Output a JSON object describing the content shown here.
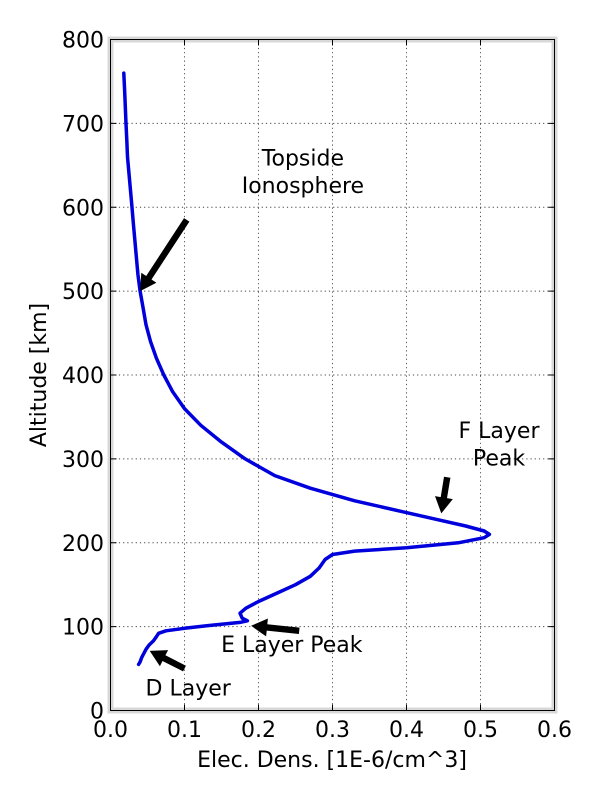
{
  "chart_data": {
    "type": "line",
    "title": "",
    "xlabel": "Elec. Dens. [1E-6/cm^3]",
    "ylabel": "Altitude [km]",
    "xlim": [
      0.0,
      0.6
    ],
    "ylim": [
      0,
      800
    ],
    "grid": true,
    "line_color": "#0000dd",
    "frame_color": "#d8d8d8",
    "xticks": [
      {
        "value": 0.0,
        "label": "0.0"
      },
      {
        "value": 0.1,
        "label": "0.1"
      },
      {
        "value": 0.2,
        "label": "0.2"
      },
      {
        "value": 0.3,
        "label": "0.3"
      },
      {
        "value": 0.4,
        "label": "0.4"
      },
      {
        "value": 0.5,
        "label": "0.5"
      },
      {
        "value": 0.6,
        "label": "0.6"
      }
    ],
    "yticks": [
      {
        "value": 0,
        "label": "0"
      },
      {
        "value": 100,
        "label": "100"
      },
      {
        "value": 200,
        "label": "200"
      },
      {
        "value": 300,
        "label": "300"
      },
      {
        "value": 400,
        "label": "400"
      },
      {
        "value": 500,
        "label": "500"
      },
      {
        "value": 600,
        "label": "600"
      },
      {
        "value": 700,
        "label": "700"
      },
      {
        "value": 800,
        "label": "800"
      }
    ],
    "series": [
      {
        "points": [
          [
            0.018,
            760
          ],
          [
            0.019,
            740
          ],
          [
            0.02,
            720
          ],
          [
            0.021,
            700
          ],
          [
            0.022,
            680
          ],
          [
            0.023,
            660
          ],
          [
            0.025,
            640
          ],
          [
            0.027,
            620
          ],
          [
            0.029,
            600
          ],
          [
            0.031,
            580
          ],
          [
            0.033,
            560
          ],
          [
            0.035,
            540
          ],
          [
            0.037,
            520
          ],
          [
            0.04,
            500
          ],
          [
            0.044,
            480
          ],
          [
            0.048,
            460
          ],
          [
            0.054,
            440
          ],
          [
            0.062,
            420
          ],
          [
            0.072,
            400
          ],
          [
            0.084,
            380
          ],
          [
            0.1,
            360
          ],
          [
            0.122,
            340
          ],
          [
            0.15,
            320
          ],
          [
            0.182,
            300
          ],
          [
            0.222,
            280
          ],
          [
            0.27,
            265
          ],
          [
            0.33,
            250
          ],
          [
            0.39,
            238
          ],
          [
            0.44,
            228
          ],
          [
            0.48,
            220
          ],
          [
            0.505,
            214
          ],
          [
            0.512,
            210
          ],
          [
            0.505,
            206
          ],
          [
            0.47,
            200
          ],
          [
            0.4,
            194
          ],
          [
            0.33,
            190
          ],
          [
            0.3,
            186
          ],
          [
            0.29,
            180
          ],
          [
            0.282,
            170
          ],
          [
            0.27,
            160
          ],
          [
            0.25,
            150
          ],
          [
            0.225,
            140
          ],
          [
            0.2,
            130
          ],
          [
            0.183,
            122
          ],
          [
            0.175,
            116
          ],
          [
            0.178,
            110
          ],
          [
            0.185,
            107
          ],
          [
            0.175,
            105
          ],
          [
            0.13,
            101
          ],
          [
            0.1,
            98
          ],
          [
            0.075,
            95
          ],
          [
            0.065,
            92
          ],
          [
            0.062,
            88
          ],
          [
            0.058,
            83
          ],
          [
            0.052,
            78
          ],
          [
            0.048,
            73
          ],
          [
            0.045,
            68
          ],
          [
            0.042,
            63
          ],
          [
            0.04,
            58
          ],
          [
            0.038,
            55
          ]
        ]
      }
    ],
    "annotations": [
      {
        "id": "topside",
        "lines": [
          "Topside",
          "Ionosphere"
        ],
        "text_x": 0.26,
        "text_y": [
          650,
          617
        ],
        "arrow_from": [
          0.103,
          585
        ],
        "arrow_to": [
          0.04,
          500
        ]
      },
      {
        "id": "f-layer",
        "lines": [
          "F Layer",
          "Peak"
        ],
        "text_x": 0.525,
        "text_y": [
          325,
          292
        ],
        "arrow_from": [
          0.455,
          278
        ],
        "arrow_to": [
          0.447,
          235
        ]
      },
      {
        "id": "e-layer",
        "lines": [
          "E Layer Peak"
        ],
        "text_x": 0.245,
        "text_y": [
          70
        ],
        "arrow_from": [
          0.255,
          95
        ],
        "arrow_to": [
          0.19,
          101
        ]
      },
      {
        "id": "d-layer",
        "lines": [
          "D Layer"
        ],
        "text_x": 0.105,
        "text_y": [
          18
        ],
        "arrow_from": [
          0.1,
          50
        ],
        "arrow_to": [
          0.053,
          71
        ]
      }
    ]
  }
}
